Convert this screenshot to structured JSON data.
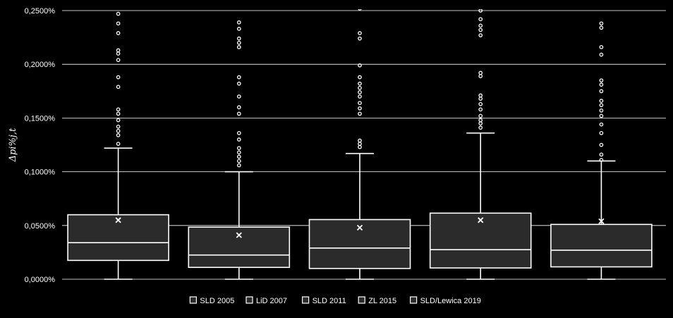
{
  "chart_data": {
    "type": "box",
    "ylabel": "Δpi%j,t",
    "ylim": [
      0,
      0.0025
    ],
    "yticks": [
      "0,0000%",
      "0,0500%",
      "0,1000%",
      "0,1500%",
      "0,2000%",
      "0,2500%"
    ],
    "ytick_values": [
      0,
      0.0005,
      0.001,
      0.0015,
      0.002,
      0.0025
    ],
    "grid": true,
    "legend_position": "bottom",
    "colors": {
      "background": "#000000",
      "box_fill": "#2b2b2b",
      "stroke": "#ffffff",
      "grid": "#ffffff"
    },
    "series": [
      {
        "name": "SLD 2005",
        "whisker_low": 0.0,
        "q1": 0.000175,
        "median": 0.00034,
        "q3": 0.0006,
        "whisker_high": 0.00122,
        "mean": 0.00055,
        "outliers": [
          0.00126,
          0.00134,
          0.00138,
          0.00142,
          0.00148,
          0.00154,
          0.00158,
          0.00179,
          0.00188,
          0.00204,
          0.0021,
          0.00213,
          0.00229,
          0.00238,
          0.00247
        ]
      },
      {
        "name": "LiD 2007",
        "whisker_low": 0.0,
        "q1": 0.00011,
        "median": 0.000225,
        "q3": 0.000485,
        "whisker_high": 0.001,
        "mean": 0.00041,
        "outliers": [
          0.00106,
          0.0011,
          0.00114,
          0.00118,
          0.00122,
          0.0013,
          0.00136,
          0.00154,
          0.0016,
          0.0017,
          0.00182,
          0.00188,
          0.00216,
          0.0022,
          0.00224,
          0.00233,
          0.00239
        ]
      },
      {
        "name": "SLD 2011",
        "whisker_low": 0.0,
        "q1": 0.0001,
        "median": 0.00029,
        "q3": 0.000555,
        "whisker_high": 0.00117,
        "mean": 0.00048,
        "outliers": [
          0.00123,
          0.00126,
          0.00129,
          0.00154,
          0.00159,
          0.00164,
          0.0017,
          0.00174,
          0.00178,
          0.00182,
          0.00188,
          0.00199,
          0.00224,
          0.00229,
          0.00252
        ]
      },
      {
        "name": "ZL 2015",
        "whisker_low": 0.0,
        "q1": 0.000105,
        "median": 0.000275,
        "q3": 0.000615,
        "whisker_high": 0.00136,
        "mean": 0.00055,
        "outliers": [
          0.00141,
          0.00145,
          0.00148,
          0.00152,
          0.00158,
          0.00163,
          0.00168,
          0.00171,
          0.00189,
          0.00192,
          0.00227,
          0.00232,
          0.00236,
          0.00242,
          0.0025
        ]
      },
      {
        "name": "SLD/Lewica 2019",
        "whisker_low": 0.0,
        "q1": 0.000115,
        "median": 0.00027,
        "q3": 0.00051,
        "whisker_high": 0.0011,
        "mean": 0.00054,
        "outliers": [
          0.00111,
          0.00116,
          0.00125,
          0.00136,
          0.00144,
          0.00152,
          0.00157,
          0.00162,
          0.00166,
          0.00175,
          0.00181,
          0.00185,
          0.00209,
          0.00216,
          0.00234,
          0.00238
        ]
      }
    ]
  }
}
